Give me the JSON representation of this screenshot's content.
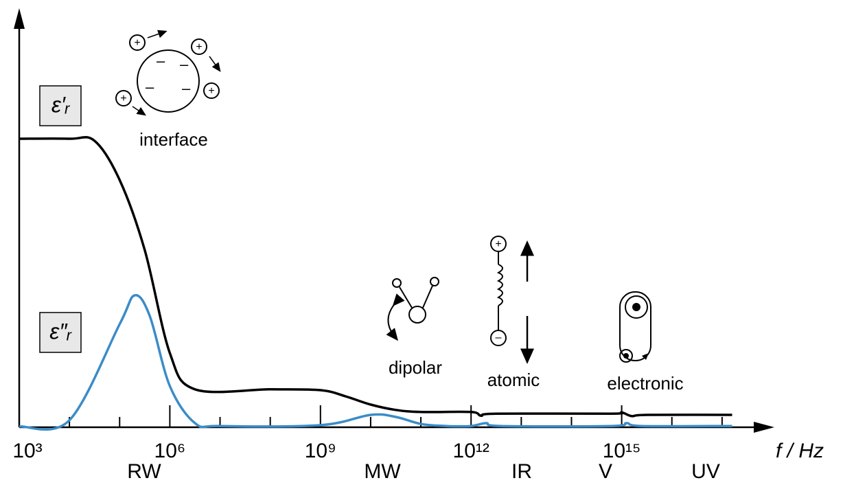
{
  "chart_data": {
    "type": "line",
    "x_label": "f / Hz",
    "log_x": true,
    "xlim": [
      1000,
      1e+18
    ],
    "ylim": [
      0,
      100
    ],
    "xticks": [
      {
        "value": 1000,
        "label": "10³"
      },
      {
        "value": 1000000.0,
        "label": "10⁶"
      },
      {
        "value": 1000000000.0,
        "label": "10⁹"
      },
      {
        "value": 1000000000000.0,
        "label": "10¹²"
      },
      {
        "value": 1000000000000000.0,
        "label": "10¹⁵"
      }
    ],
    "minor_xticks": [
      10000.0,
      100000.0,
      10000000.0,
      100000000.0,
      10000000000.0,
      100000000000.0,
      10000000000000.0,
      100000000000000.0,
      1e+16,
      1e+17
    ],
    "bands": [
      "RW",
      "MW",
      "IR",
      "V",
      "UV"
    ],
    "annotations": [
      "interface",
      "dipolar",
      "atomic",
      "electronic"
    ],
    "series": [
      {
        "name": "ε′ᵣ",
        "color": "#000000",
        "x": [
          1000,
          10000,
          31623,
          100000,
          316228,
          1000000.0,
          3162278,
          100000000.0,
          1000000000.0,
          3162277660,
          10000000000.0,
          31622776602,
          100000000000.0,
          1000000000000.0,
          1585000000000.0,
          3162000000000.0,
          631000000000000.0,
          1000000000000000.0,
          1585000000000000.0,
          3162000000000000.0,
          1.585e+17
        ],
        "values": [
          70,
          70,
          69.5,
          60,
          43,
          18,
          9.2,
          9.2,
          9,
          7.5,
          5.5,
          4.2,
          3.7,
          3.7,
          2.8,
          3.3,
          3.3,
          3.6,
          2.7,
          3,
          3
        ]
      },
      {
        "name": "ε″ᵣ",
        "color": "#3a8cc8",
        "x": [
          1000,
          10000,
          100000,
          199526,
          398107,
          1000000.0,
          3162278,
          10000000.0,
          1000000000.0,
          10000000000.0,
          31622776602,
          100000000000.0,
          316227766017,
          1000000000000.0,
          1995000000000.0,
          3981000000000.0,
          631000000000000.0,
          1259000000000000.0,
          2512000000000000.0,
          1.585e+17
        ],
        "values": [
          0.2,
          1.7,
          25,
          32,
          27,
          10,
          1,
          0.3,
          0.5,
          3,
          2.5,
          0.8,
          0.3,
          0.3,
          1,
          0.3,
          0.3,
          1,
          0.3,
          0.3
        ]
      }
    ]
  }
}
